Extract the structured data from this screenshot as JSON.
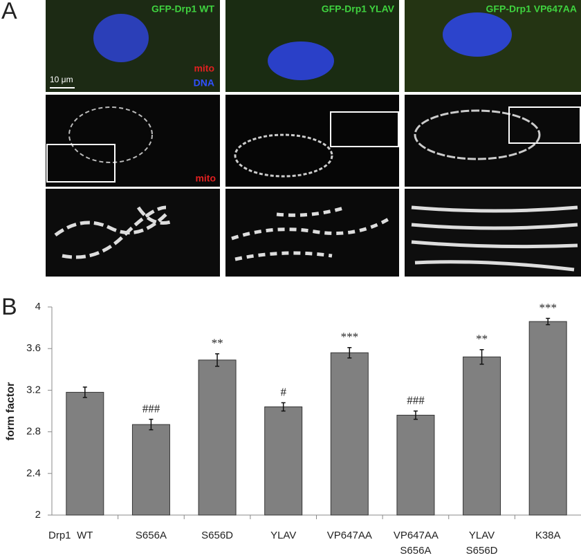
{
  "panels": {
    "a": {
      "letter": "A",
      "titles": [
        "GFP-Drp1 WT",
        "GFP-Drp1 YLAV",
        "GFP-Drp1 VP647AA"
      ],
      "mito": "mito",
      "dna": "DNA",
      "scale_bar": "10 μm",
      "mito_row2": "mito"
    },
    "b": {
      "letter": "B"
    }
  },
  "chart_data": {
    "type": "bar",
    "x_prefix": "Drp1",
    "ylabel": "form factor",
    "categories": [
      "WT",
      "S656A",
      "S656D",
      "YLAV",
      "VP647AA",
      "VP647AA S656A",
      "YLAV S656D",
      "K38A"
    ],
    "values": [
      3.18,
      2.87,
      3.49,
      3.04,
      3.56,
      2.96,
      3.52,
      3.86
    ],
    "errors": [
      0.05,
      0.05,
      0.06,
      0.04,
      0.05,
      0.04,
      0.07,
      0.03
    ],
    "annotations": [
      null,
      "###",
      "**",
      "#",
      "***",
      "###",
      "**",
      "***"
    ],
    "color": "#808080",
    "ylim": [
      2,
      4
    ],
    "yticks": [
      2,
      2.4,
      2.8,
      3.2,
      3.6,
      4
    ]
  }
}
